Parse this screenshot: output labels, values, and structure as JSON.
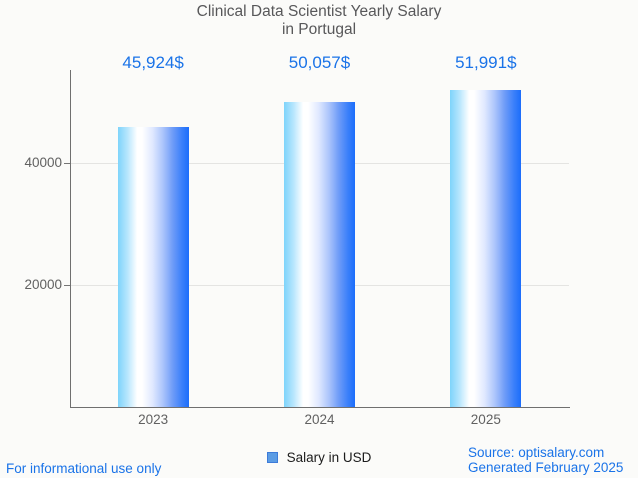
{
  "page": {
    "background": "#fbfbf9",
    "accent_blue": "#1a73e8",
    "axis_color": "#6f6f6f",
    "grid_color": "#e4e4e2",
    "title_color": "#58585a"
  },
  "title": {
    "line1": "Clinical Data Scientist Yearly Salary",
    "line2": "in Portugal"
  },
  "chart_data": {
    "type": "bar",
    "title": "Clinical Data Scientist Yearly Salary in Portugal",
    "categories": [
      "2023",
      "2024",
      "2025"
    ],
    "series": [
      {
        "name": "Salary in USD",
        "values": [
          45924,
          50057,
          51991
        ]
      }
    ],
    "value_labels": [
      "45,924$",
      "50,057$",
      "51,991$"
    ],
    "ylim": [
      0,
      55250
    ],
    "yticks": [
      20000,
      40000
    ],
    "ytick_labels": [
      "20000",
      "40000"
    ],
    "grid": true,
    "legend_position": "bottom",
    "bar_gradient_stops": [
      {
        "color": "#7ed4fb",
        "pct": 0
      },
      {
        "color": "#b5e5fd",
        "pct": 13
      },
      {
        "color": "#ffffff",
        "pct": 27
      },
      {
        "color": "#ffffff",
        "pct": 34
      },
      {
        "color": "#dfe8ff",
        "pct": 49
      },
      {
        "color": "#a9c3fb",
        "pct": 64
      },
      {
        "color": "#6f9cf8",
        "pct": 77
      },
      {
        "color": "#3b80fa",
        "pct": 90
      },
      {
        "color": "#1b6dfb",
        "pct": 100
      }
    ]
  },
  "legend": {
    "label": "Salary in USD",
    "swatch_color": "#5b9ce4",
    "swatch_border": "#3c7bd9"
  },
  "footer": {
    "disclaimer": "For informational use only",
    "source": "Source: optisalary.com",
    "generated": "Generated February 2025"
  }
}
